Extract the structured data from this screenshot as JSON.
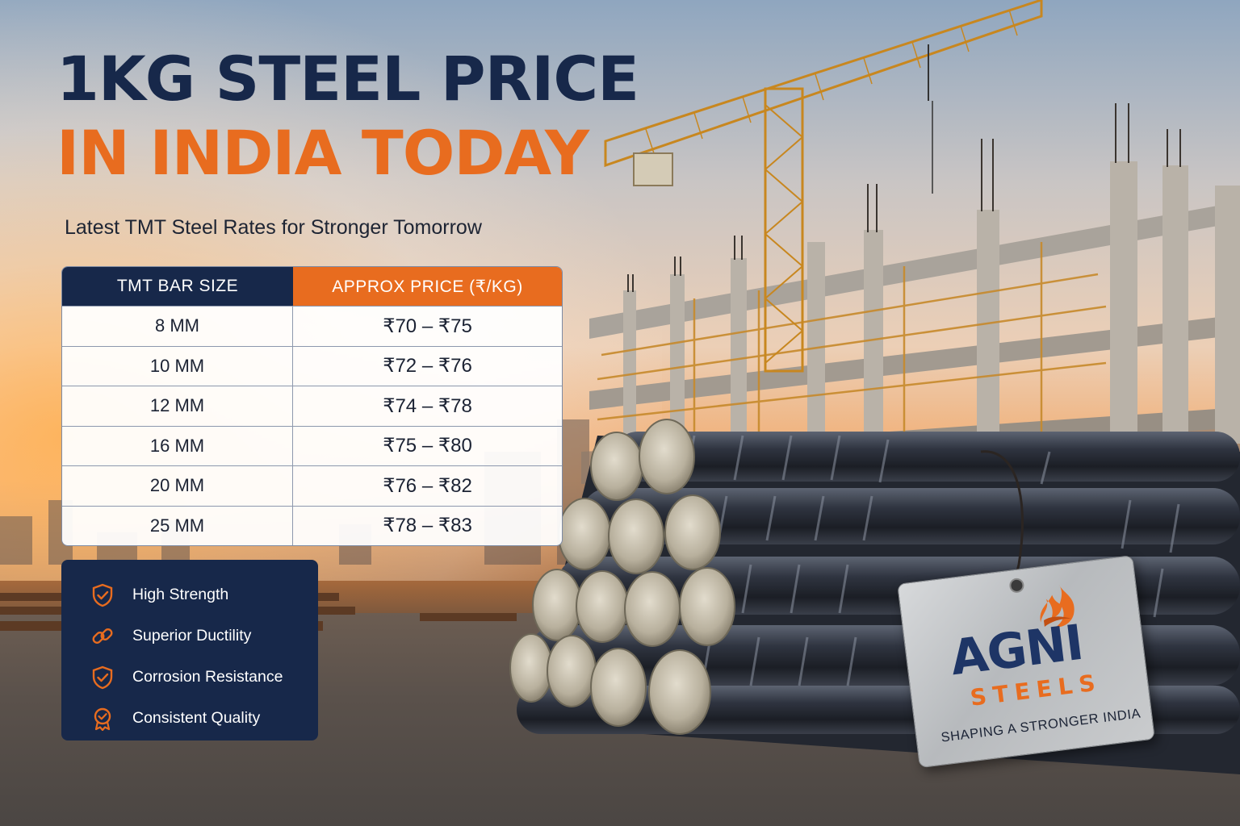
{
  "title": {
    "line1": "1KG STEEL PRICE",
    "line2": "IN INDIA TODAY",
    "subtitle": "Latest TMT Steel Rates for Stronger Tomorrow"
  },
  "table": {
    "headers": [
      "TMT BAR SIZE",
      "APPROX PRICE (₹/KG)"
    ],
    "rows": [
      {
        "size": "8 MM",
        "price": "₹70 – ₹75"
      },
      {
        "size": "10 MM",
        "price": "₹72 – ₹76"
      },
      {
        "size": "12 MM",
        "price": "₹74 – ₹78"
      },
      {
        "size": "16 MM",
        "price": "₹75 – ₹80"
      },
      {
        "size": "20 MM",
        "price": "₹76 – ₹82"
      },
      {
        "size": "25 MM",
        "price": "₹78 – ₹83"
      }
    ]
  },
  "features": [
    {
      "label": "High Strength",
      "icon": "shield-check-icon"
    },
    {
      "label": "Superior Ductility",
      "icon": "chain-link-icon"
    },
    {
      "label": "Corrosion Resistance",
      "icon": "shield-check-icon"
    },
    {
      "label": "Consistent Quality",
      "icon": "award-badge-icon"
    }
  ],
  "brand": {
    "name": "AGNI",
    "sub": "STEELS",
    "tagline": "SHAPING A STRONGER INDIA"
  },
  "colors": {
    "navy": "#17284a",
    "orange": "#e86c1f",
    "white": "#ffffff"
  }
}
